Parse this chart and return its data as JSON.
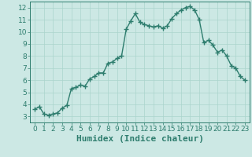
{
  "xlabel": "Humidex (Indice chaleur)",
  "x_values": [
    0,
    0.5,
    1,
    1.5,
    2,
    2.5,
    3,
    3.5,
    4,
    4.5,
    5,
    5.5,
    6,
    6.5,
    7,
    7.5,
    8,
    8.5,
    9,
    9.5,
    10,
    10.5,
    11,
    11.5,
    12,
    12.5,
    13,
    13.5,
    14,
    14.5,
    15,
    15.5,
    16,
    16.5,
    17,
    17.5,
    18,
    18.5,
    19,
    19.5,
    20,
    20.5,
    21,
    21.5,
    22,
    22.5,
    23
  ],
  "y_values": [
    3.6,
    3.8,
    3.2,
    3.1,
    3.2,
    3.3,
    3.7,
    3.9,
    5.3,
    5.4,
    5.6,
    5.5,
    6.1,
    6.3,
    6.6,
    6.6,
    7.4,
    7.5,
    7.8,
    8.0,
    10.2,
    10.9,
    11.5,
    10.8,
    10.6,
    10.5,
    10.4,
    10.5,
    10.3,
    10.5,
    11.1,
    11.5,
    11.8,
    12.0,
    12.1,
    11.8,
    11.0,
    9.1,
    9.3,
    8.9,
    8.3,
    8.5,
    8.0,
    7.2,
    7.0,
    6.3,
    6.0
  ],
  "line_color": "#2e7d6e",
  "marker": "+",
  "marker_size": 5,
  "background_color": "#cce8e4",
  "grid_color": "#aad4cc",
  "xlim": [
    -0.5,
    23.5
  ],
  "ylim": [
    2.5,
    12.5
  ],
  "yticks": [
    3,
    4,
    5,
    6,
    7,
    8,
    9,
    10,
    11,
    12
  ],
  "xticks": [
    0,
    1,
    2,
    3,
    4,
    5,
    6,
    7,
    8,
    9,
    10,
    11,
    12,
    13,
    14,
    15,
    16,
    17,
    18,
    19,
    20,
    21,
    22,
    23
  ],
  "tick_fontsize": 6.5,
  "xlabel_fontsize": 8,
  "line_width": 1.0
}
